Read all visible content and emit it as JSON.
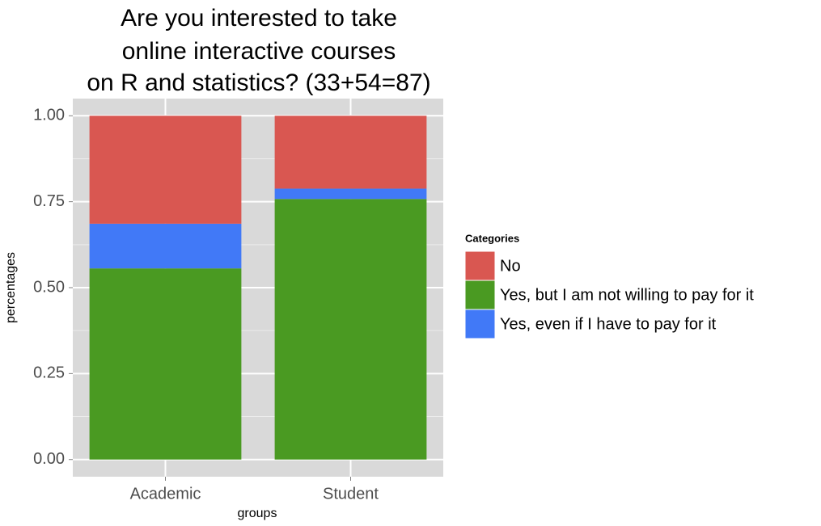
{
  "chart_data": {
    "type": "stacked_bar",
    "title": [
      "Are you interested to take",
      "online interactive courses",
      "on R and statistics? (33+54=87)"
    ],
    "x_label": "groups",
    "y_label": "percentages",
    "categories": [
      "Academic",
      "Student"
    ],
    "series": [
      {
        "name": "Yes, but I am not willing to pay for it",
        "color": "#4a9a22",
        "values": [
          0.556,
          0.758
        ]
      },
      {
        "name": "Yes, even if I have to pay for it",
        "color": "#4179f7",
        "values": [
          0.13,
          0.03
        ]
      },
      {
        "name": "No",
        "color": "#d95751",
        "values": [
          0.314,
          0.212
        ]
      }
    ],
    "legend_title": "Categories",
    "legend_order": [
      2,
      0,
      1
    ],
    "ylim": [
      -0.05,
      1.05
    ],
    "yticks": [
      {
        "value": 0,
        "label": "0.00"
      },
      {
        "value": 0.25,
        "label": "0.25"
      },
      {
        "value": 0.5,
        "label": "0.50"
      },
      {
        "value": 0.75,
        "label": "0.75"
      },
      {
        "value": 1,
        "label": "1.00"
      }
    ],
    "grid": true
  }
}
